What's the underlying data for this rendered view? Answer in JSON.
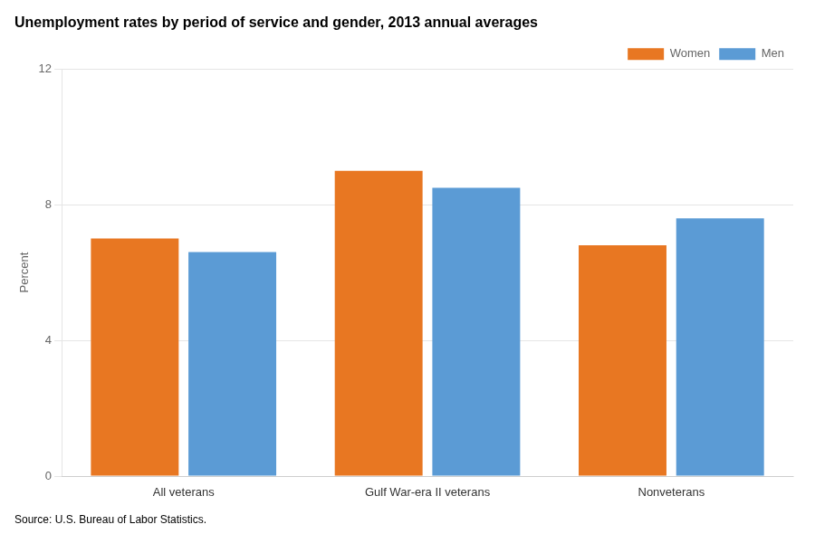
{
  "chart_data": {
    "type": "bar",
    "title": "Unemployment rates by period of service and gender, 2013 annual averages",
    "ylabel": "Percent",
    "source": "Source: U.S. Bureau of Labor Statistics.",
    "categories": [
      "All veterans",
      "Gulf War-era II veterans",
      "Nonveterans"
    ],
    "series": [
      {
        "name": "Women",
        "color": "#E87722",
        "values": [
          7.0,
          9.0,
          6.8
        ]
      },
      {
        "name": "Men",
        "color": "#5B9BD5",
        "values": [
          6.6,
          8.5,
          7.6
        ]
      }
    ],
    "ylim": [
      0,
      12
    ],
    "yticks": [
      0,
      4,
      8,
      12
    ],
    "grid": true,
    "legend": "top"
  }
}
